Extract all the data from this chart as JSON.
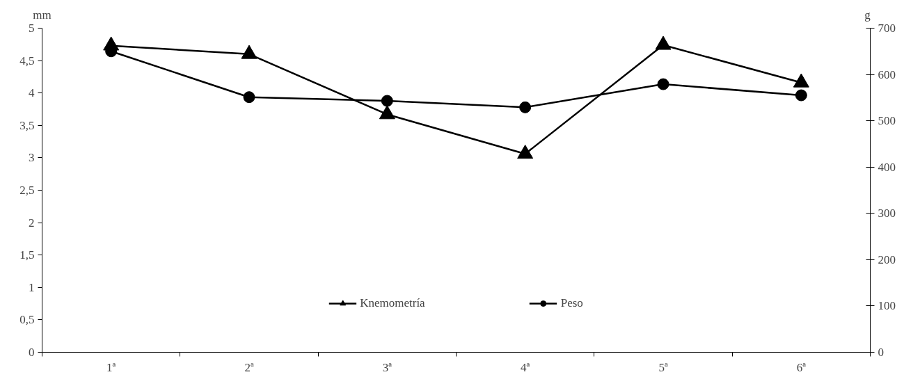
{
  "chart_data": {
    "type": "line",
    "categories": [
      "1ª",
      "2ª",
      "3ª",
      "4ª",
      "5ª",
      "6ª"
    ],
    "ylabel": "mm",
    "y2label": "g",
    "ylim": [
      0,
      5
    ],
    "yticks": [
      0,
      {
        "value": 0.5,
        "label": "0,5"
      },
      1,
      {
        "value": 1.5,
        "label": "1,5"
      },
      2,
      {
        "value": 2.5,
        "label": "2,5"
      },
      3,
      {
        "value": 3.5,
        "label": "3,5"
      },
      4,
      {
        "value": 4.5,
        "label": "4,5"
      },
      5
    ],
    "y2lim": [
      0,
      700
    ],
    "y2ticks": [
      0,
      100,
      200,
      300,
      400,
      500,
      600,
      700
    ],
    "grid": false,
    "legend": "bottom",
    "line_style": "solid",
    "series": [
      {
        "name": "Knemometría",
        "color": "#000000",
        "marker": "triangle",
        "values": [
          4.73,
          4.6,
          3.67,
          3.06,
          4.74,
          4.16
        ]
      },
      {
        "name": "Peso",
        "color": "#000000",
        "marker": "circle",
        "axis": "y2",
        "values": [
          650,
          551,
          543,
          529,
          579,
          555
        ]
      }
    ]
  }
}
